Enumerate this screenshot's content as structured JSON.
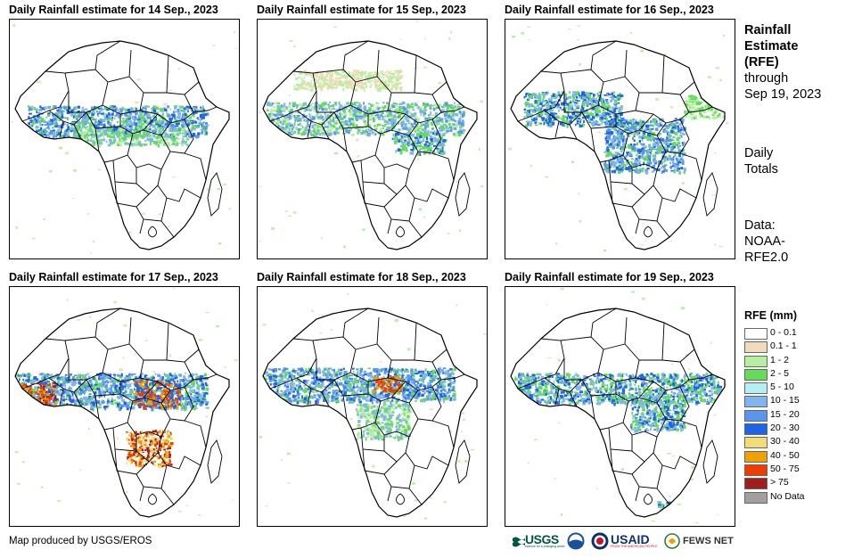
{
  "panels": [
    {
      "title": "Daily Rainfall estimate for 14 Sep., 2023",
      "seed": 1
    },
    {
      "title": "Daily Rainfall estimate for 15 Sep., 2023",
      "seed": 2
    },
    {
      "title": "Daily Rainfall estimate for 16 Sep., 2023",
      "seed": 3
    },
    {
      "title": "Daily Rainfall estimate for 17 Sep., 2023",
      "seed": 4
    },
    {
      "title": "Daily Rainfall estimate for 18 Sep., 2023",
      "seed": 5
    },
    {
      "title": "Daily Rainfall estimate for 19 Sep., 2023",
      "seed": 6
    }
  ],
  "side": {
    "title_1": "Rainfall",
    "title_2": "Estimate",
    "title_3": "(RFE)",
    "through_1": "through",
    "through_2": "Sep 19, 2023",
    "totals_1": "Daily",
    "totals_2": "Totals",
    "data_1": "Data:",
    "data_2": "NOAA-",
    "data_3": "RFE2.0"
  },
  "legend": {
    "title": "RFE (mm)",
    "items": [
      {
        "label": "0 - 0.1",
        "color": "#ffffff"
      },
      {
        "label": "0.1 - 1",
        "color": "#f0dcb8"
      },
      {
        "label": "1 - 2",
        "color": "#b4f0a0"
      },
      {
        "label": "2 - 5",
        "color": "#64dc5a"
      },
      {
        "label": "5 - 10",
        "color": "#b4f0f0"
      },
      {
        "label": "10 - 15",
        "color": "#82b4f0"
      },
      {
        "label": "15 - 20",
        "color": "#5a96f0"
      },
      {
        "label": "20 - 30",
        "color": "#1e64e6"
      },
      {
        "label": "30 - 40",
        "color": "#f0dc78"
      },
      {
        "label": "40 - 50",
        "color": "#f0a000"
      },
      {
        "label": "50 - 75",
        "color": "#f03c00"
      },
      {
        "label": "> 75",
        "color": "#a01e1e"
      },
      {
        "label": "No Data",
        "color": "#a0a0a0"
      }
    ]
  },
  "credit": "Map produced by USGS/EROS",
  "logos": {
    "usgs": "USGS",
    "usgs_tagline": "science for a changing world",
    "usaid": "USAID",
    "usaid_tagline": "FROM THE AMERICAN PEOPLE",
    "fewsnet": "FEWS NET"
  }
}
